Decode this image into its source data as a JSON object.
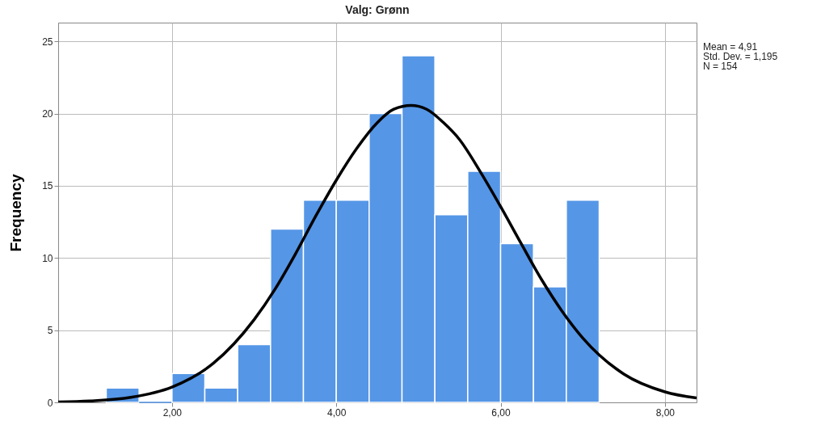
{
  "chart_data": {
    "type": "histogram",
    "title": "Valg: Grønn",
    "ylabel": "Frequency",
    "bins": [
      1.2,
      1.6,
      2.0,
      2.4,
      2.8,
      3.2,
      3.6,
      4.0,
      4.4,
      4.8,
      5.2,
      5.6,
      6.0,
      6.4,
      6.8,
      7.2
    ],
    "values": [
      1,
      0,
      2,
      1,
      4,
      12,
      14,
      14,
      20,
      24,
      13,
      16,
      11,
      8,
      14
    ],
    "color": "#5596e6",
    "series": [
      {
        "type": "line",
        "color": "#000000",
        "x": [
          0.615,
          1,
          1.5,
          2,
          2.5,
          3,
          3.25,
          3.5,
          3.75,
          4,
          4.25,
          4.5,
          4.7,
          4.91,
          5.1,
          5.3,
          5.5,
          5.75,
          6,
          6.25,
          6.5,
          6.75,
          7,
          7.5,
          8,
          8.385
        ],
        "values": [
          0.03,
          0.1,
          0.35,
          1.06,
          2.69,
          5.73,
          7.8,
          10.25,
          12.9,
          15.39,
          17.6,
          19.38,
          20.3,
          20.56,
          20.3,
          19.4,
          18.2,
          16.0,
          13.56,
          11.0,
          8.49,
          6.3,
          4.46,
          1.96,
          0.73,
          0.3
        ]
      }
    ],
    "xlim": [
      0.615,
      8.385
    ],
    "ylim": [
      0,
      26.3
    ],
    "xticks": [
      {
        "value": 2,
        "label": "2,00"
      },
      {
        "value": 4,
        "label": "4,00"
      },
      {
        "value": 6,
        "label": "6,00"
      },
      {
        "value": 8,
        "label": "8,00"
      }
    ],
    "yticks": [
      0,
      5,
      10,
      15,
      20,
      25
    ],
    "grid": true,
    "annotations": [
      "Mean = 4,91",
      "Std. Dev. = 1,195",
      "N = 154"
    ]
  }
}
